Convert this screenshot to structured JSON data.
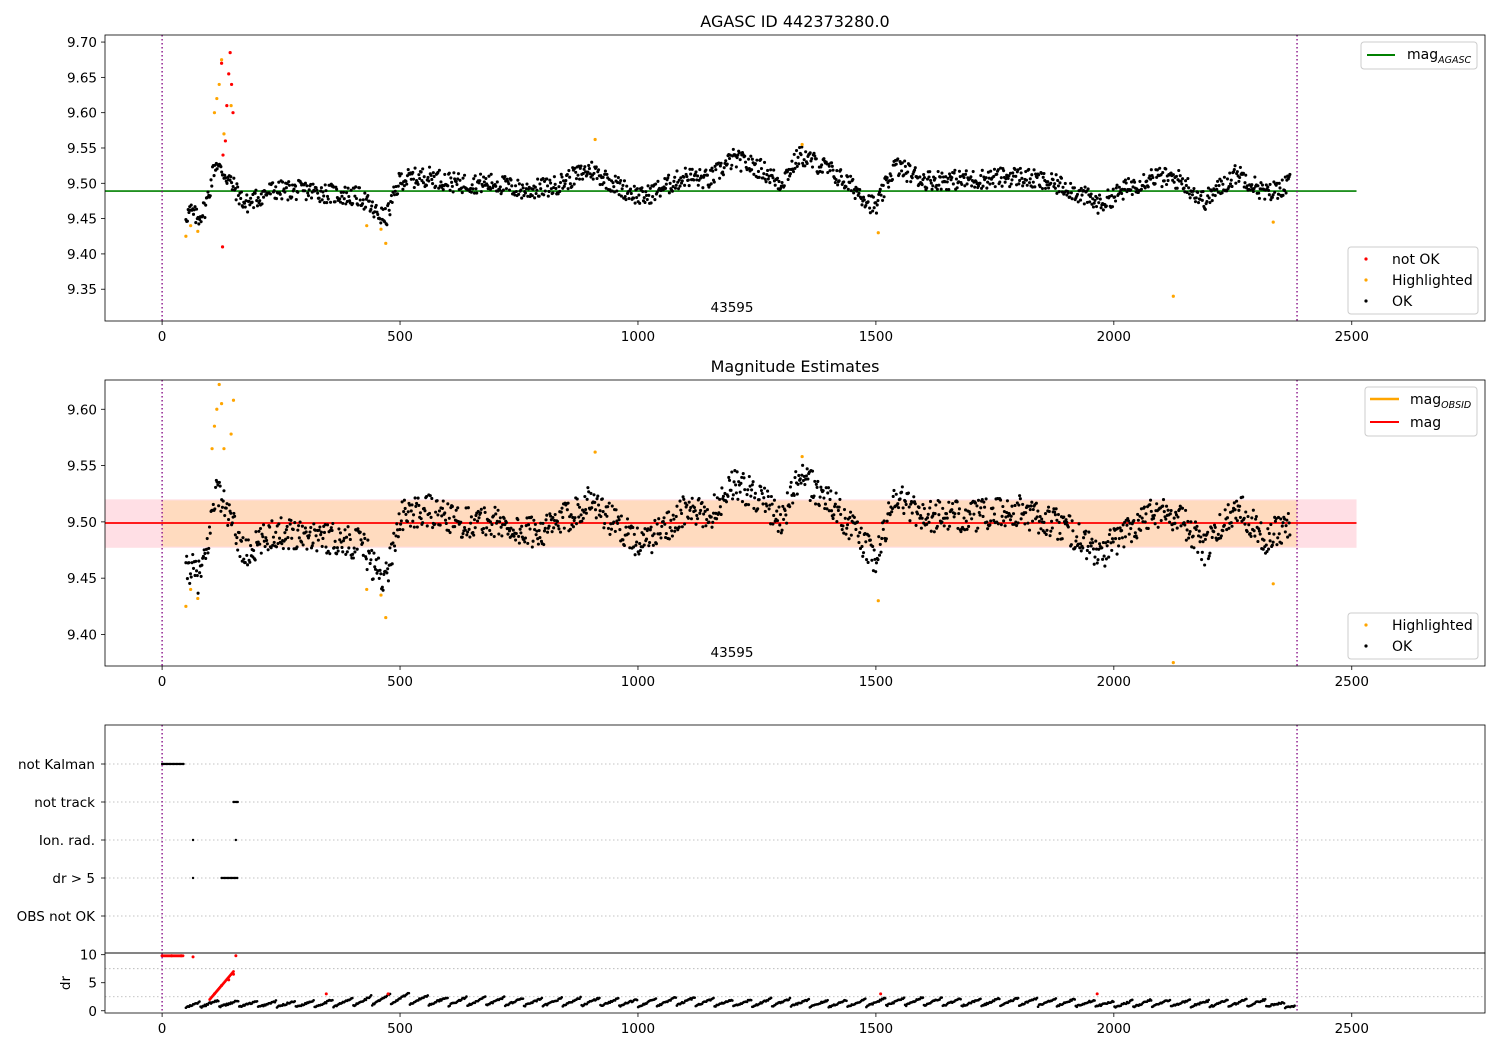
{
  "colors": {
    "ok": "#000000",
    "highlighted": "#ffa500",
    "not_ok": "#ff0000",
    "agasc_line": "#008000",
    "mag_line": "#ff0000",
    "mag_obsid_line": "#ffa500",
    "band_outer": "#ffc0cb",
    "band_inner": "#ffdab9",
    "boundary": "#800080",
    "grid": "#b0b0b0"
  },
  "chart_data": [
    {
      "type": "scatter",
      "title": "AGASC ID 442373280.0",
      "xlim": [
        -120,
        2780
      ],
      "ylim": [
        9.305,
        9.71
      ],
      "xticks": [
        "0",
        "500",
        "1000",
        "1500",
        "2000",
        "2500"
      ],
      "yticks": [
        "9.35",
        "9.40",
        "9.45",
        "9.50",
        "9.55",
        "9.60",
        "9.65",
        "9.70"
      ],
      "annotation": "43595",
      "annotation_x": 1195,
      "obs_boundaries": [
        0,
        2385
      ],
      "reference_line": {
        "name": "mag",
        "subscript": "AGASC",
        "y": 9.489,
        "x_range": [
          -120,
          2510
        ]
      },
      "legend_lines": [
        {
          "name": "mag",
          "subscript": "AGASC"
        }
      ],
      "legend_markers": [
        "not OK",
        "Highlighted",
        "OK"
      ],
      "series": [
        {
          "name": "OK",
          "x": [
            50,
            60,
            75,
            90,
            100,
            108,
            115,
            120,
            130,
            175,
            230,
            300,
            360,
            420,
            445,
            470,
            500,
            560,
            620,
            700,
            760,
            820,
            900,
            960,
            1010,
            1100,
            1150,
            1200,
            1260,
            1300,
            1340,
            1400,
            1460,
            1500,
            1540,
            1600,
            1700,
            1800,
            1900,
            1970,
            2020,
            2080,
            2140,
            2190,
            2260,
            2320,
            2370
          ],
          "y": [
            9.455,
            9.46,
            9.45,
            9.465,
            9.49,
            9.52,
            9.53,
            9.52,
            9.515,
            9.47,
            9.49,
            9.49,
            9.485,
            9.48,
            9.46,
            9.45,
            9.505,
            9.51,
            9.5,
            9.5,
            9.49,
            9.495,
            9.52,
            9.495,
            9.48,
            9.51,
            9.505,
            9.535,
            9.52,
            9.5,
            9.54,
            9.52,
            9.49,
            9.465,
            9.525,
            9.505,
            9.505,
            9.51,
            9.495,
            9.47,
            9.49,
            9.51,
            9.505,
            9.475,
            9.515,
            9.485,
            9.5
          ]
        },
        {
          "name": "Highlighted",
          "x": [
            50,
            60,
            75,
            110,
            115,
            120,
            125,
            130,
            145,
            430,
            460,
            470,
            910,
            1345,
            1505,
            2125,
            2335
          ],
          "y": [
            9.425,
            9.44,
            9.432,
            9.6,
            9.62,
            9.64,
            9.675,
            9.57,
            9.61,
            9.44,
            9.435,
            9.415,
            9.562,
            9.555,
            9.43,
            9.34,
            9.445
          ]
        },
        {
          "name": "not OK",
          "x": [
            125,
            128,
            133,
            136,
            140,
            143,
            146,
            149,
            127
          ],
          "y": [
            9.67,
            9.54,
            9.56,
            9.61,
            9.655,
            9.685,
            9.64,
            9.6,
            9.41
          ]
        }
      ]
    },
    {
      "type": "scatter",
      "title": "Magnitude Estimates",
      "xlim": [
        -120,
        2780
      ],
      "ylim": [
        9.372,
        9.626
      ],
      "xticks": [
        "0",
        "500",
        "1000",
        "1500",
        "2000",
        "2500"
      ],
      "yticks": [
        "9.40",
        "9.45",
        "9.50",
        "9.55",
        "9.60"
      ],
      "annotation": "43595",
      "annotation_x": 1195,
      "obs_boundaries": [
        0,
        2385
      ],
      "mag_line": {
        "name": "mag",
        "y": 9.499,
        "x_range": [
          -120,
          2510
        ]
      },
      "mag_band_outer": [
        9.477,
        9.52
      ],
      "mag_band_inner": [
        9.478,
        9.519
      ],
      "legend_lines": [
        {
          "name": "mag",
          "subscript": "OBSID"
        },
        {
          "name": "mag",
          "subscript": ""
        }
      ],
      "legend_markers": [
        "Highlighted",
        "OK"
      ],
      "series": [
        {
          "name": "OK",
          "x": [
            50,
            60,
            75,
            90,
            100,
            108,
            115,
            130,
            175,
            230,
            300,
            360,
            420,
            445,
            470,
            500,
            560,
            620,
            700,
            760,
            820,
            900,
            960,
            1010,
            1100,
            1150,
            1200,
            1260,
            1300,
            1340,
            1400,
            1460,
            1500,
            1540,
            1600,
            1700,
            1800,
            1900,
            1970,
            2020,
            2080,
            2140,
            2190,
            2260,
            2320,
            2370
          ],
          "y": [
            9.455,
            9.46,
            9.45,
            9.465,
            9.49,
            9.52,
            9.53,
            9.515,
            9.47,
            9.49,
            9.49,
            9.485,
            9.48,
            9.46,
            9.45,
            9.505,
            9.51,
            9.5,
            9.5,
            9.49,
            9.495,
            9.52,
            9.495,
            9.48,
            9.51,
            9.505,
            9.535,
            9.52,
            9.5,
            9.54,
            9.52,
            9.49,
            9.465,
            9.525,
            9.505,
            9.505,
            9.51,
            9.495,
            9.47,
            9.49,
            9.51,
            9.505,
            9.475,
            9.515,
            9.485,
            9.5
          ]
        },
        {
          "name": "Highlighted",
          "x": [
            50,
            60,
            75,
            105,
            110,
            115,
            120,
            125,
            130,
            145,
            150,
            430,
            460,
            470,
            910,
            1345,
            1505,
            2125,
            2335
          ],
          "y": [
            9.425,
            9.44,
            9.432,
            9.565,
            9.585,
            9.6,
            9.622,
            9.605,
            9.565,
            9.578,
            9.608,
            9.44,
            9.435,
            9.415,
            9.562,
            9.558,
            9.43,
            9.375,
            9.445
          ]
        }
      ]
    },
    {
      "type": "scatter",
      "title": "",
      "xlim": [
        -120,
        2780
      ],
      "categories": [
        "not Kalman",
        "not track",
        "Ion. rad.",
        "dr > 5",
        "OBS not OK"
      ],
      "obs_boundaries": [
        0,
        2385
      ],
      "series": [
        {
          "name": "not Kalman",
          "x": [
            0,
            45
          ],
          "y": [
            "not Kalman",
            "not Kalman"
          ]
        },
        {
          "name": "not track",
          "x": [
            150,
            160
          ],
          "y": [
            "not track",
            "not track"
          ]
        },
        {
          "name": "Ion. rad.",
          "x": [
            65,
            155
          ],
          "y": [
            "Ion. rad.",
            "Ion. rad."
          ]
        },
        {
          "name": "dr > 5",
          "x": [
            65,
            125,
            150
          ],
          "y": [
            "dr > 5",
            "dr > 5",
            "dr > 5"
          ]
        }
      ]
    },
    {
      "type": "scatter",
      "title": "",
      "ylabel": "dr",
      "xlim": [
        -120,
        2780
      ],
      "ylim": [
        -0.4,
        10.3
      ],
      "xticks": [
        "0",
        "500",
        "1000",
        "1500",
        "2000",
        "2500"
      ],
      "yticks": [
        "0",
        "5",
        "10"
      ],
      "obs_boundaries": [
        0,
        2385
      ],
      "series": [
        {
          "name": "OK",
          "x": [
            50,
            100,
            200,
            300,
            400,
            500,
            600,
            700,
            800,
            900,
            1000,
            1100,
            1200,
            1300,
            1400,
            1500,
            1600,
            1700,
            1800,
            1900,
            2000,
            2100,
            2200,
            2300,
            2380
          ],
          "y": [
            0.8,
            1.4,
            1.2,
            1.3,
            1.6,
            2.4,
            1.7,
            1.8,
            1.6,
            1.7,
            1.5,
            1.8,
            1.4,
            1.6,
            1.3,
            1.6,
            1.8,
            1.5,
            1.7,
            1.6,
            1.2,
            1.5,
            1.3,
            1.6,
            0.9
          ]
        },
        {
          "name": "not OK",
          "x": [
            0,
            20,
            40,
            65,
            110,
            125,
            140,
            150,
            155,
            345,
            475,
            1510,
            1965
          ],
          "y": [
            9.8,
            9.8,
            9.8,
            9.6,
            3.0,
            4.5,
            5.5,
            6.5,
            9.8,
            3.0,
            3.0,
            3.0,
            3.0
          ]
        }
      ]
    }
  ]
}
